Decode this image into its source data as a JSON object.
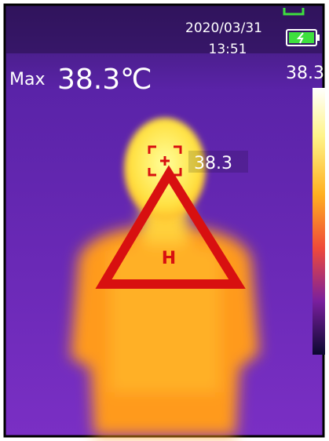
{
  "status": {
    "date": "2020/03/31",
    "time": "13:51"
  },
  "max": {
    "label": "Max",
    "value": "38.3℃"
  },
  "scale": {
    "top": "38.3"
  },
  "spot": {
    "value": "38.3"
  },
  "warning": {
    "label": "H"
  }
}
